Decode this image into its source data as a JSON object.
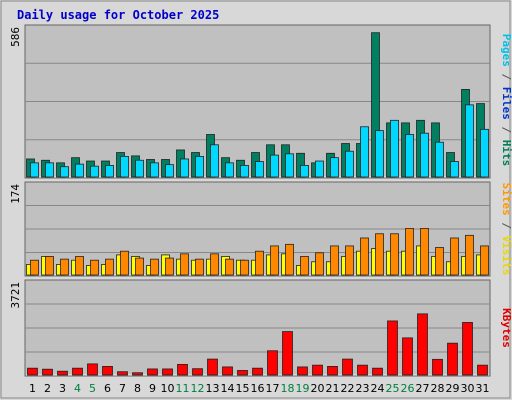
{
  "chart_data": {
    "type": "bar",
    "title": "Daily usage for October 2025",
    "categories": [
      "1",
      "2",
      "3",
      "4",
      "5",
      "6",
      "7",
      "8",
      "9",
      "10",
      "11",
      "12",
      "13",
      "14",
      "15",
      "16",
      "17",
      "18",
      "19",
      "20",
      "21",
      "22",
      "23",
      "24",
      "25",
      "26",
      "27",
      "28",
      "29",
      "30",
      "31"
    ],
    "weekend_days": [
      "4",
      "5",
      "11",
      "12",
      "18",
      "19",
      "25",
      "26"
    ],
    "panels": [
      {
        "id": "top",
        "max_label": "586",
        "ylim": [
          0,
          586
        ],
        "axis_labels": [
          {
            "text": "Pages",
            "color": "#00c0e8"
          },
          {
            "text": " / ",
            "color": "#555555"
          },
          {
            "text": "Files",
            "color": "#0033cc"
          },
          {
            "text": " / ",
            "color": "#555555"
          },
          {
            "text": "Hits",
            "color": "#00805a"
          }
        ],
        "series": [
          {
            "name": "Hits",
            "color": "#008060",
            "values": [
              70,
              65,
              55,
              75,
              62,
              62,
              95,
              82,
              68,
              68,
              105,
              95,
              165,
              75,
              65,
              95,
              125,
              125,
              92,
              55,
              92,
              130,
              130,
              560,
              210,
              210,
              220,
              210,
              95,
              340,
              285
            ]
          },
          {
            "name": "Files",
            "color": "#2244cc",
            "values": [
              0,
              0,
              0,
              0,
              0,
              0,
              0,
              0,
              0,
              0,
              0,
              0,
              0,
              0,
              0,
              0,
              0,
              0,
              0,
              0,
              0,
              0,
              0,
              0,
              0,
              0,
              0,
              0,
              0,
              0,
              0
            ]
          },
          {
            "name": "Pages",
            "color": "#00d8ff",
            "values": [
              55,
              55,
              40,
              50,
              42,
              45,
              80,
              65,
              55,
              48,
              70,
              80,
              125,
              55,
              45,
              60,
              85,
              90,
              45,
              62,
              75,
              100,
              195,
              180,
              220,
              165,
              170,
              135,
              60,
              280,
              185
            ]
          }
        ]
      },
      {
        "id": "middle",
        "max_label": "174",
        "ylim": [
          0,
          174
        ],
        "axis_labels": [
          {
            "text": "Sites",
            "color": "#ff9900"
          },
          {
            "text": " / ",
            "color": "#555555"
          },
          {
            "text": "Visits",
            "color": "#e8d800"
          }
        ],
        "series": [
          {
            "name": "Visits",
            "color": "#ffff00",
            "values": [
              20,
              35,
              20,
              28,
              18,
              20,
              38,
              35,
              18,
              38,
              30,
              28,
              30,
              35,
              28,
              28,
              38,
              40,
              18,
              25,
              25,
              35,
              45,
              50,
              45,
              45,
              55,
              35,
              25,
              35,
              38
            ]
          },
          {
            "name": "Sites",
            "color": "#ff8800",
            "values": [
              28,
              35,
              30,
              35,
              28,
              30,
              45,
              32,
              30,
              32,
              40,
              30,
              40,
              30,
              28,
              45,
              55,
              58,
              35,
              42,
              55,
              55,
              70,
              78,
              78,
              88,
              88,
              52,
              70,
              75,
              55
            ]
          }
        ]
      },
      {
        "id": "bottom",
        "max_label": "3721",
        "ylim": [
          0,
          3721
        ],
        "axis_labels": [
          {
            "text": "KBytes",
            "color": "#e00000"
          }
        ],
        "series": [
          {
            "name": "KBytes",
            "color": "#ff0000",
            "values": [
              270,
              230,
              150,
              270,
              440,
              340,
              130,
              90,
              240,
              240,
              420,
              250,
              630,
              320,
              180,
              270,
              960,
              1720,
              320,
              390,
              340,
              630,
              390,
              270,
              2140,
              1470,
              2420,
              620,
              1260,
              2080,
              390
            ]
          }
        ]
      }
    ],
    "colors": {
      "title": "#0000cc",
      "weekday_label": "#000000",
      "weekend_label": "#008040",
      "plot_bg": "#c0c0c0",
      "frame_bg": "#d8d8d8"
    }
  }
}
